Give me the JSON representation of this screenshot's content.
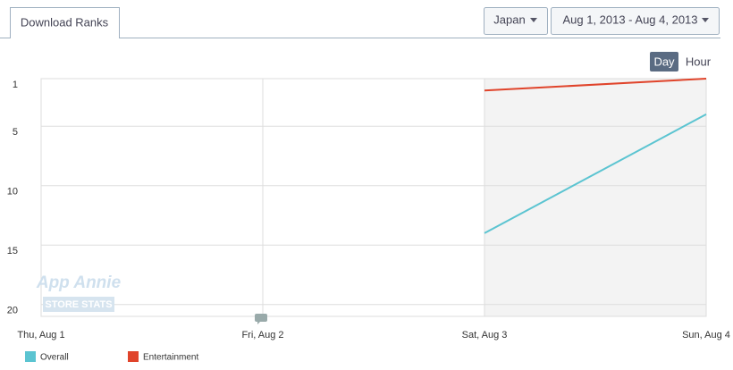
{
  "tab": "Download Ranks",
  "controls": {
    "country": "Japan",
    "date_range": "Aug 1, 2013 - Aug 4, 2013",
    "granularity": [
      "Day",
      "Hour"
    ]
  },
  "watermark": {
    "brand": "App Annie",
    "product": "STORE STATS"
  },
  "chart_data": {
    "type": "line",
    "categories": [
      "Thu, Aug 1",
      "Fri, Aug 2",
      "Sat, Aug 3",
      "Sun, Aug 4"
    ],
    "series": [
      {
        "name": "Overall",
        "color": "#5bc4d1",
        "values": [
          null,
          null,
          14,
          4
        ]
      },
      {
        "name": "Entertainment",
        "color": "#e0442b",
        "values": [
          null,
          null,
          2,
          1
        ]
      }
    ],
    "ylim": [
      1,
      21
    ],
    "y_inverted": true,
    "yticks": [
      1,
      5,
      10,
      15,
      20
    ],
    "grid": true
  }
}
